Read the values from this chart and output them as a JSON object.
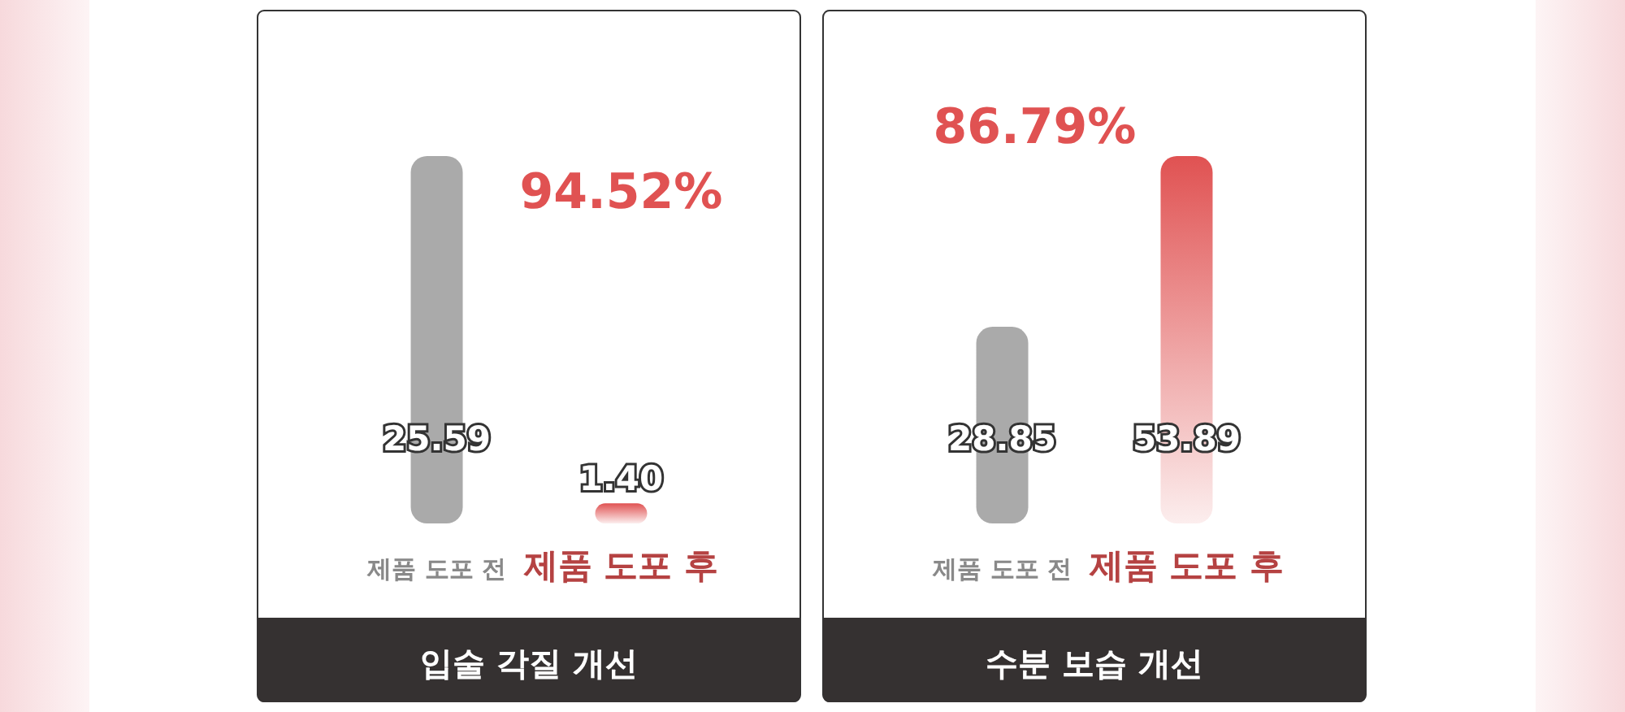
{
  "chart_data": [
    {
      "type": "bar",
      "title": "입술 각질 개선",
      "categories": [
        "제품 도포 전",
        "제품 도포 후"
      ],
      "values": [
        25.59,
        1.4
      ],
      "value_labels": [
        "25.59",
        "1.40"
      ],
      "colors": [
        "#aaaaaa",
        "#e05252"
      ],
      "annotations": [
        "94.52%"
      ]
    },
    {
      "type": "bar",
      "title": "수분 보습 개선",
      "categories": [
        "제품 도포 전",
        "제품 도포 후"
      ],
      "values": [
        28.85,
        53.89
      ],
      "value_labels": [
        "28.85",
        "53.89"
      ],
      "colors": [
        "#aaaaaa",
        "#e05252"
      ],
      "annotations": [
        "86.79%"
      ]
    }
  ]
}
